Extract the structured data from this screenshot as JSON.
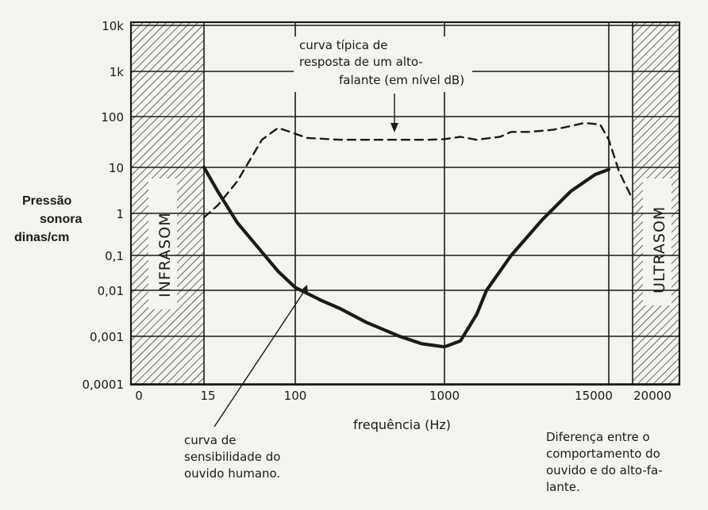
{
  "chart_data": {
    "type": "line",
    "title": "",
    "xlabel": "frequência (Hz)",
    "ylabel_lines": [
      "Pressão",
      "sonora",
      "dinas/cm"
    ],
    "x_scale": "log",
    "y_scale": "log",
    "x_tick_labels": [
      "0",
      "15",
      "100",
      "1000",
      "15000",
      "20000"
    ],
    "y_tick_labels": [
      "10k",
      "1k",
      "100",
      "10",
      "1",
      "0,1",
      "0,01",
      "0,001",
      "0,0001"
    ],
    "ylim": [
      0.0001,
      10000
    ],
    "xlim": [
      15,
      20000
    ],
    "grid": true,
    "regions": [
      {
        "label": "INFRASOM",
        "x_range": [
          null,
          15
        ]
      },
      {
        "label": "ULTRASOM",
        "x_range": [
          20000,
          null
        ]
      }
    ],
    "series": [
      {
        "name": "curva típica de resposta de um alto-falante (em nível dB)",
        "style": "dashed",
        "x": [
          15,
          20,
          30,
          50,
          70,
          90,
          120,
          200,
          300,
          500,
          800,
          1000,
          1300,
          1700,
          2500,
          3000,
          4000,
          6000,
          8000,
          10000,
          13000,
          15000,
          17000,
          20000
        ],
        "y": [
          0.8,
          1.5,
          5,
          35,
          60,
          50,
          38,
          35,
          35,
          35,
          35,
          36,
          40,
          35,
          40,
          50,
          50,
          55,
          65,
          75,
          70,
          35,
          8,
          2
        ]
      },
      {
        "name": "curva de sensibilidade do ouvido humano",
        "style": "solid",
        "x": [
          15,
          20,
          30,
          50,
          70,
          100,
          150,
          200,
          300,
          500,
          700,
          1000,
          1300,
          1700,
          2000,
          3000,
          5000,
          8000,
          12000,
          15000
        ],
        "y": [
          10,
          3,
          0.6,
          0.12,
          0.035,
          0.012,
          0.006,
          0.004,
          0.002,
          0.001,
          0.0007,
          0.0006,
          0.0008,
          0.003,
          0.01,
          0.1,
          0.7,
          3,
          7,
          9
        ]
      }
    ],
    "annotations": [
      {
        "id": "speaker",
        "lines": [
          "curva típica de",
          "resposta de um alto-",
          "falante (em nível dB)"
        ]
      },
      {
        "id": "ear",
        "lines": [
          "curva de",
          "sensibilidade do",
          "ouvido humano."
        ]
      },
      {
        "id": "diff",
        "lines": [
          "Diferença entre o",
          "comportamento do",
          "ouvido e do alto-fa-",
          "lante."
        ]
      }
    ]
  }
}
